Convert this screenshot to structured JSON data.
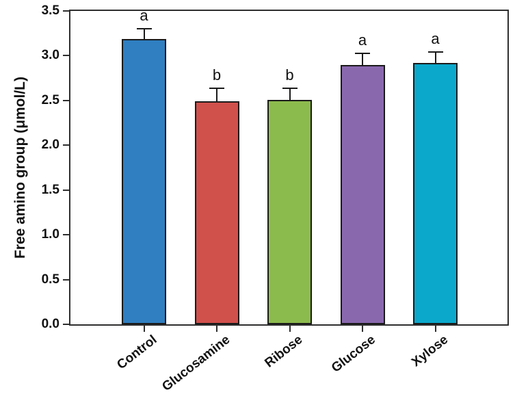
{
  "chart_data": {
    "type": "bar",
    "title": "",
    "ylabel": "Free amino group (μmol/L)",
    "xlabel": "",
    "ylim": [
      0.0,
      3.5
    ],
    "ytick_step": 0.5,
    "ytick_labels": [
      "0.0",
      "0.5",
      "1.0",
      "1.5",
      "2.0",
      "2.5",
      "3.0",
      "3.5"
    ],
    "grid": false,
    "legend_position": "none",
    "categories": [
      "Control",
      "Glucosamine",
      "Ribose",
      "Glucose",
      "Xylose"
    ],
    "values": [
      3.19,
      2.49,
      2.51,
      2.9,
      2.92
    ],
    "error_bars": [
      0.11,
      0.15,
      0.13,
      0.13,
      0.12
    ],
    "significance_letters": [
      "a",
      "b",
      "b",
      "a",
      "a"
    ],
    "bar_colors": [
      "#2F7FC1",
      "#D0504C",
      "#8CBB4D",
      "#8A68AE",
      "#0BA8CC"
    ],
    "bar_border_color": "#1A1A1A",
    "axis_color": "#2E2E2E",
    "text_color": "#111111",
    "background_color": "#FFFFFF"
  }
}
